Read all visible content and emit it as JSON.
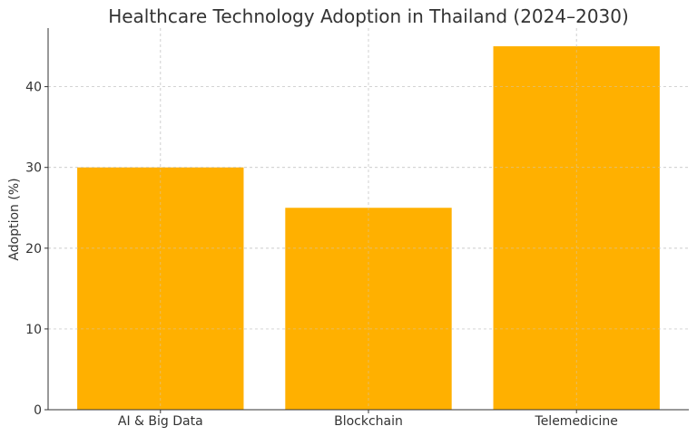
{
  "chart_data": {
    "type": "bar",
    "title": "Healthcare Technology Adoption in Thailand (2024–2030)",
    "xlabel": "",
    "ylabel": "Adoption (%)",
    "categories": [
      "AI & Big Data",
      "Blockchain",
      "Telemedicine"
    ],
    "values": [
      30,
      25,
      45
    ],
    "ylim": [
      0,
      47.25
    ],
    "yticks": [
      0,
      10,
      20,
      30,
      40
    ],
    "grid": true,
    "bar_color": "#FFB000"
  }
}
